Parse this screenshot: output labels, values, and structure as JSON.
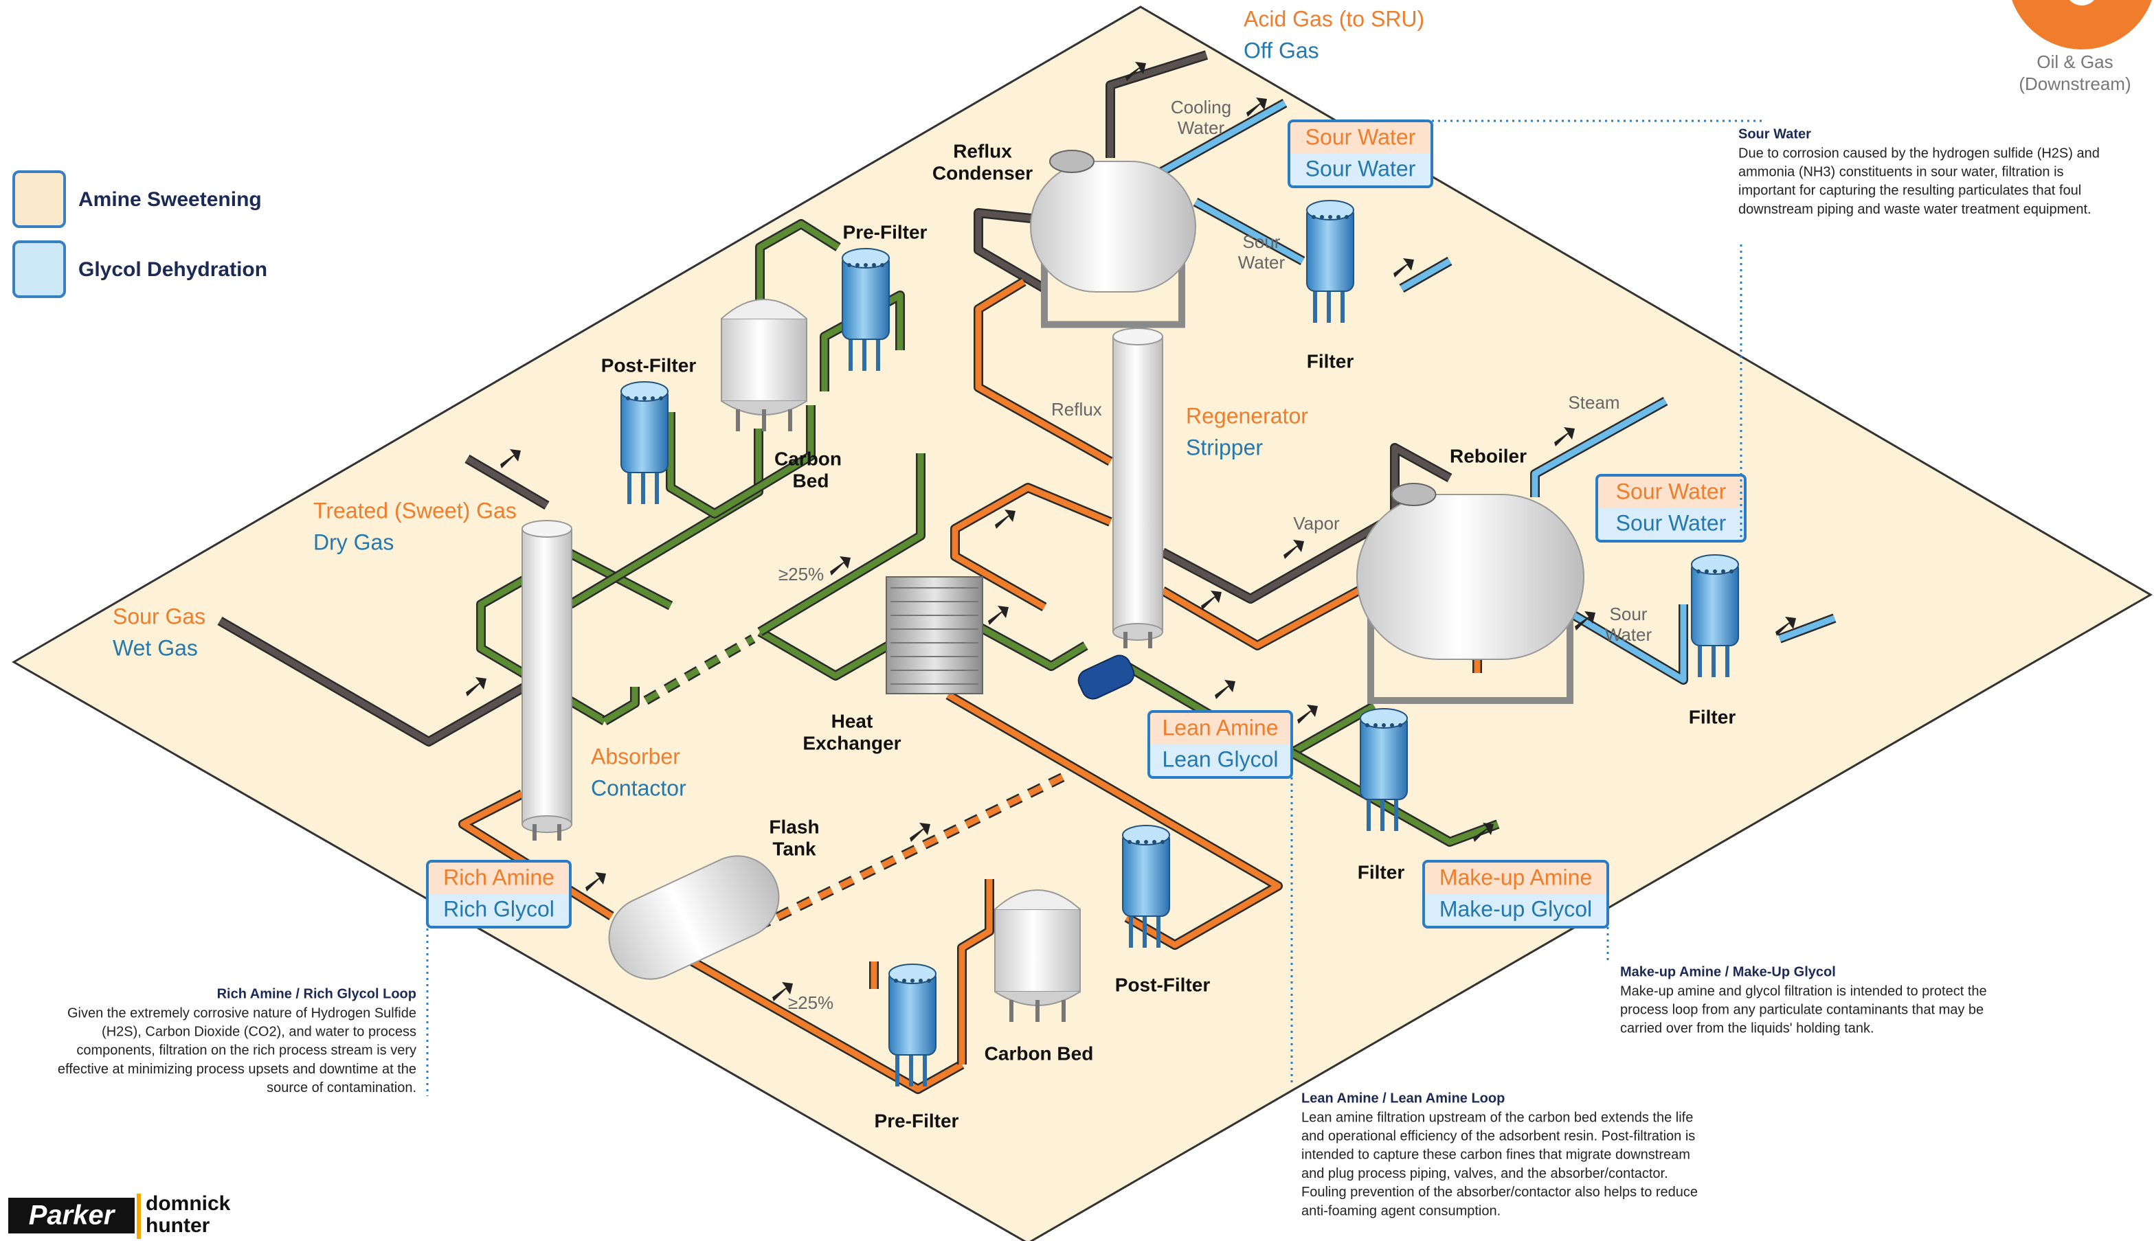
{
  "brand": {
    "sector": [
      "Oil & Gas",
      "(Downstream)"
    ],
    "logo": "Parker",
    "partner": [
      "domnick",
      "hunter"
    ]
  },
  "legend": [
    "Amine Sweetening",
    "Glycol Dehydration"
  ],
  "labels": [
    "Acid Gas (to SRU)",
    "Off Gas",
    "Cooling",
    "Water",
    "Reflux",
    "Condenser",
    "Sour",
    "Water",
    "Filter",
    "Pre-Filter",
    "Post-Filter",
    "Carbon",
    "Bed",
    "Treated (Sweet) Gas",
    "Dry Gas",
    "Sour Gas",
    "Wet Gas",
    "Reflux",
    "Regenerator",
    "Stripper",
    "Steam",
    "Reboiler",
    "Vapor",
    "≥25%",
    "Heat",
    "Exchanger",
    "Absorber",
    "Contactor",
    "Sour",
    "Water",
    "Filter",
    "Filter",
    "Flash",
    "Tank",
    "≥25%",
    "Post-Filter",
    "Carbon Bed",
    "Pre-Filter"
  ],
  "tags": [
    [
      "Sour Water",
      "Sour Water"
    ],
    [
      "Sour Water",
      "Sour Water"
    ],
    [
      "Lean Amine",
      "Lean Glycol"
    ],
    [
      "Rich Amine",
      "Rich Glycol"
    ],
    [
      "Make-up Amine",
      "Make-up Glycol"
    ]
  ],
  "notes": [
    {
      "title": "Sour Water",
      "lines": [
        "Due to corrosion caused by the hydrogen sulfide (H2S) and",
        "ammonia (NH3) constituents in sour water, filtration is",
        "important for capturing the resulting particulates that foul",
        "downstream piping and waste water treatment equipment."
      ]
    },
    {
      "title": "Rich Amine / Rich Glycol Loop",
      "lines": [
        "Given the extremely corrosive nature of Hydrogen Sulfide",
        "(H2S), Carbon Dioxide (CO2), and water to process",
        "components, filtration on the rich process stream is very",
        "effective at minimizing process upsets and downtime at the",
        "source of contamination."
      ]
    },
    {
      "title": "Make-up Amine / Make-Up Glycol",
      "lines": [
        "Make-up amine and glycol filtration is intended to protect the",
        "process loop from any particulate contaminants that may be",
        "carried over from the liquids' holding tank."
      ]
    },
    {
      "title": "Lean Amine / Lean Amine Loop",
      "lines": [
        "Lean amine filtration upstream of the carbon bed extends the life",
        "and operational efficiency of the adsorbent resin. Post-filtration is",
        "intended to capture these carbon fines that migrate downstream",
        "and plug process piping, valves, and the absorber/contactor.",
        "Fouling prevention of the absorber/contactor also helps to reduce",
        "anti-foaming agent consumption."
      ]
    }
  ]
}
